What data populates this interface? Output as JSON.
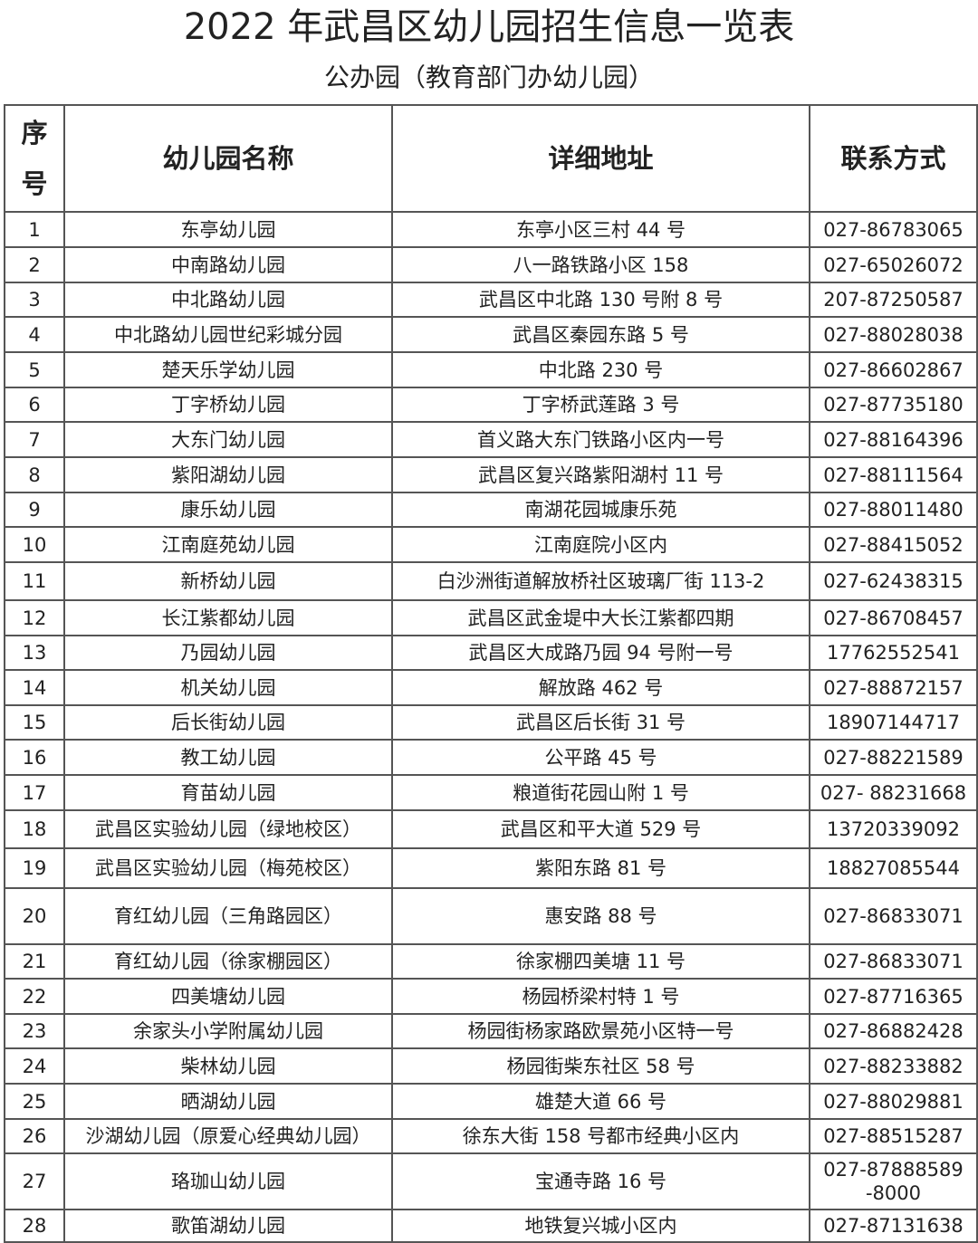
{
  "header": {
    "title": "2022 年武昌区幼儿园招生信息一览表",
    "subtitle": "公办园（教育部门办幼儿园）"
  },
  "table": {
    "columns": [
      "序号",
      "幼儿园名称",
      "详细地址",
      "联系方式"
    ],
    "rows": [
      [
        "1",
        "东亭幼儿园",
        "东亭小区三村 44 号",
        "027-86783065"
      ],
      [
        "2",
        "中南路幼儿园",
        "八一路铁路小区 158",
        "027-65026072"
      ],
      [
        "3",
        "中北路幼儿园",
        "武昌区中北路 130 号附 8 号",
        "207-87250587"
      ],
      [
        "4",
        "中北路幼儿园世纪彩城分园",
        "武昌区秦园东路 5 号",
        "027-88028038"
      ],
      [
        "5",
        "楚天乐学幼儿园",
        "中北路 230 号",
        "027-86602867"
      ],
      [
        "6",
        "丁字桥幼儿园",
        "丁字桥武莲路 3 号",
        "027-87735180"
      ],
      [
        "7",
        "大东门幼儿园",
        "首义路大东门铁路小区内一号",
        "027-88164396"
      ],
      [
        "8",
        "紫阳湖幼儿园",
        "武昌区复兴路紫阳湖村 11 号",
        "027-88111564"
      ],
      [
        "9",
        "康乐幼儿园",
        "南湖花园城康乐苑",
        "027-88011480"
      ],
      [
        "10",
        "江南庭苑幼儿园",
        "江南庭院小区内",
        "027-88415052"
      ],
      [
        "11",
        "新桥幼儿园",
        "白沙洲街道解放桥社区玻璃厂街 113-2",
        "027-62438315"
      ],
      [
        "12",
        "长江紫都幼儿园",
        "武昌区武金堤中大长江紫都四期",
        "027-86708457"
      ],
      [
        "13",
        "乃园幼儿园",
        "武昌区大成路乃园 94 号附一号",
        "17762552541"
      ],
      [
        "14",
        "机关幼儿园",
        "解放路 462 号",
        "027-88872157"
      ],
      [
        "15",
        "后长街幼儿园",
        "武昌区后长街 31 号",
        "18907144717"
      ],
      [
        "16",
        "教工幼儿园",
        "公平路 45 号",
        "027-88221589"
      ],
      [
        "17",
        "育苗幼儿园",
        "粮道街花园山附 1 号",
        "027- 88231668"
      ],
      [
        "18",
        "武昌区实验幼儿园（绿地校区）",
        "武昌区和平大道 529 号",
        "13720339092"
      ],
      [
        "19",
        "武昌区实验幼儿园（梅苑校区）",
        "紫阳东路 81 号",
        "18827085544"
      ],
      [
        "20",
        "育红幼儿园（三角路园区）",
        "惠安路 88 号",
        "027-86833071"
      ],
      [
        "21",
        "育红幼儿园（徐家棚园区）",
        "徐家棚四美塘 11 号",
        "027-86833071"
      ],
      [
        "22",
        "四美塘幼儿园",
        "杨园桥梁村特 1 号",
        "027-87716365"
      ],
      [
        "23",
        "余家头小学附属幼儿园",
        "杨园街杨家路欧景苑小区特一号",
        "027-86882428"
      ],
      [
        "24",
        "柴林幼儿园",
        "杨园街柴东社区 58 号",
        "027-88233882"
      ],
      [
        "25",
        "晒湖幼儿园",
        "雄楚大道 66 号",
        "027-88029881"
      ],
      [
        "26",
        "沙湖幼儿园（原爱心经典幼儿园）",
        "徐东大街 158 号都市经典小区内",
        "027-88515287"
      ],
      [
        "27",
        "珞珈山幼儿园",
        "宝通寺路 16 号",
        "027-87888589\n-8000"
      ],
      [
        "28",
        "歌笛湖幼儿园",
        "地铁复兴城小区内",
        "027-87131638"
      ]
    ]
  }
}
